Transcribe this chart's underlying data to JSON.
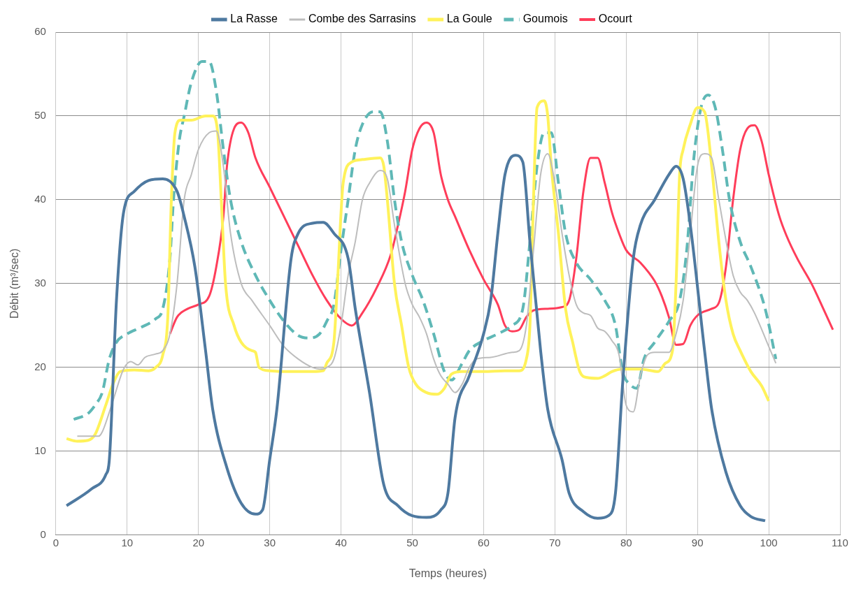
{
  "chart_data": {
    "type": "line",
    "xlabel": "Temps (heures)",
    "ylabel": "Débit (m³/sec)",
    "xlim": [
      0,
      110
    ],
    "xticks": [
      0,
      10,
      20,
      30,
      40,
      50,
      60,
      70,
      80,
      90,
      100,
      110
    ],
    "ylim": [
      0,
      60
    ],
    "yticks": [
      0,
      10,
      20,
      30,
      40,
      50,
      60
    ],
    "grid": true,
    "legend": "top",
    "marker": "none",
    "line_style": "solid",
    "series": [
      {
        "name": "La Rasse",
        "color": "#4e79a0",
        "x": [
          1.5,
          5,
          7,
          7.5,
          8.5,
          9.5,
          11,
          13,
          15,
          17,
          18,
          19.5,
          21,
          22,
          24,
          26,
          28,
          29,
          30,
          31,
          33,
          34,
          36,
          37.5,
          39,
          41,
          42,
          44,
          46,
          48,
          50,
          52,
          54,
          55,
          56,
          58,
          60,
          61,
          62,
          63,
          64.5,
          65.5,
          66.5,
          68,
          69,
          71,
          72,
          74,
          76,
          77.5,
          78.5,
          79.5,
          81,
          82,
          84,
          86,
          87,
          88,
          89,
          91,
          92,
          94,
          96,
          97.5,
          99.5
        ],
        "values": [
          3.5,
          5.5,
          7.2,
          9,
          28,
          38.5,
          41,
          42.3,
          42.5,
          41,
          38,
          32,
          22,
          15,
          8,
          3.8,
          2.5,
          3,
          9,
          15,
          33,
          36,
          37.2,
          37.3,
          36,
          33,
          27,
          17,
          6,
          3.5,
          2.3,
          2.1,
          3,
          5,
          14,
          19,
          24,
          28,
          36,
          43,
          45.3,
          44.5,
          35,
          22,
          15,
          9,
          5,
          2.8,
          2,
          2.3,
          5,
          18,
          33,
          37,
          40,
          43,
          44,
          42.5,
          37,
          22,
          15,
          7.5,
          3.5,
          2.2,
          1.7
        ]
      },
      {
        "name": "Combe des Sarrasins",
        "color": "#bdbdbd",
        "x": [
          3,
          6,
          6.5,
          8,
          9.5,
          10.5,
          11.5,
          12.5,
          14,
          15,
          16,
          17,
          18,
          19,
          20,
          21.5,
          22.5,
          23.5,
          24.5,
          26,
          27.5,
          30,
          32,
          34,
          36,
          37,
          38,
          39,
          40,
          41,
          42,
          43,
          44,
          45.5,
          46.5,
          47.5,
          49,
          50,
          51,
          52,
          53,
          54,
          55,
          56,
          57,
          58,
          59,
          61,
          64,
          65,
          66,
          67,
          68,
          69,
          70,
          71,
          72,
          73,
          74,
          75,
          76,
          77,
          78,
          79,
          80,
          81,
          82,
          83,
          84,
          86,
          87,
          88,
          89,
          90,
          91,
          92,
          93,
          95,
          96,
          97,
          98,
          100,
          101
        ],
        "values": [
          11.8,
          11.8,
          12.3,
          16,
          19.8,
          20.7,
          20.3,
          21.2,
          21.6,
          22,
          24,
          30,
          40,
          43,
          46,
          48,
          48.2,
          44,
          36,
          30,
          28,
          25,
          22.5,
          21,
          20,
          19.8,
          20,
          21,
          25,
          31,
          35,
          40,
          42,
          43.5,
          42.5,
          37,
          30,
          27.5,
          26,
          24,
          21,
          19,
          18,
          17,
          18,
          20,
          21,
          21.2,
          21.8,
          22,
          25,
          34,
          43,
          45.5,
          42,
          36,
          31,
          27.5,
          26.5,
          26.2,
          24.7,
          24.3,
          23.2,
          21.5,
          15.5,
          14.7,
          19,
          21.5,
          21.8,
          21.8,
          24,
          28,
          36,
          44,
          45.5,
          45,
          40,
          31,
          29,
          28,
          26.5,
          22.5,
          20.5
        ]
      },
      {
        "name": "La Goule",
        "color": "#fff25a",
        "x": [
          1.5,
          3,
          4.5,
          5.5,
          7,
          8,
          9,
          11,
          13,
          14,
          15,
          15.7,
          16.2,
          16.7,
          17.5,
          19,
          21,
          22,
          22.7,
          23.2,
          23.8,
          25,
          26,
          27.5,
          28,
          28.5,
          30,
          33,
          36,
          37.5,
          38,
          39,
          39.5,
          40.3,
          41.5,
          43,
          45.5,
          46,
          46.5,
          47.5,
          48.5,
          49.5,
          50.5,
          52,
          53.5,
          54.5,
          55.5,
          57,
          60,
          63,
          65,
          66,
          66.5,
          67,
          67.5,
          68.5,
          69,
          69.5,
          70.5,
          71.5,
          72.5,
          73.5,
          74.5,
          76,
          77,
          78,
          79.5,
          82,
          84.5,
          85.5,
          86.5,
          87,
          87.5,
          88,
          89,
          90,
          91,
          92,
          93,
          94,
          95,
          96,
          97.5,
          99,
          100
        ],
        "values": [
          11.5,
          11.2,
          11.3,
          12,
          15.5,
          18,
          19.5,
          19.7,
          19.6,
          20,
          21.5,
          26,
          40,
          48,
          49.5,
          49.5,
          50,
          50,
          48,
          40,
          30,
          25,
          23,
          22,
          21.8,
          20,
          19.6,
          19.5,
          19.5,
          19.6,
          20.5,
          23,
          30,
          42,
          44.5,
          44.8,
          45,
          44,
          40,
          30,
          25,
          20,
          18,
          17,
          16.8,
          17.5,
          19.2,
          19.5,
          19.5,
          19.6,
          19.6,
          21,
          25,
          40,
          51,
          51.8,
          50,
          44,
          36,
          27,
          23,
          19.5,
          18.8,
          18.7,
          19,
          19.5,
          19.8,
          19.8,
          19.5,
          20.5,
          22,
          30,
          43,
          46,
          49,
          51,
          50.5,
          44,
          35,
          28,
          24,
          22,
          19.5,
          17.8,
          16
        ]
      },
      {
        "name": "Goumois",
        "color": "#5fb8b6",
        "line_style": "dashed",
        "x": [
          2.5,
          4.5,
          5.5,
          6.5,
          7.5,
          8.5,
          10,
          12,
          14,
          15,
          16,
          16.5,
          17.3,
          18,
          19,
          20.5,
          21.5,
          22.5,
          23.5,
          24.5,
          26,
          28,
          30,
          32,
          34,
          35.5,
          37,
          38,
          39,
          40,
          41,
          42,
          43,
          44.5,
          45.5,
          46.5,
          47.5,
          48.5,
          50,
          51.5,
          53,
          54.5,
          55.5,
          57,
          58,
          60,
          62,
          64,
          65.5,
          66.5,
          67.5,
          68.5,
          69.5,
          70.5,
          71.5,
          73,
          75,
          77,
          78.5,
          79.5,
          80.5,
          81.5,
          82.5,
          84,
          86,
          87.5,
          88.5,
          89.5,
          90.5,
          91.5,
          92.5,
          93.5,
          94.5,
          96,
          97.5,
          99.5,
          101
        ],
        "values": [
          13.8,
          14.5,
          15.5,
          17,
          21,
          23,
          24,
          24.8,
          25.8,
          27,
          33,
          40,
          47,
          50,
          54,
          56.5,
          56.5,
          53,
          46,
          40,
          35,
          31,
          28,
          25.5,
          23.8,
          23.5,
          24,
          25.5,
          27.5,
          34,
          40,
          46,
          49,
          50.5,
          50.5,
          47,
          40,
          35,
          31,
          28,
          24,
          19.5,
          18.5,
          20.5,
          22,
          23.2,
          24,
          25,
          27,
          35,
          44,
          48,
          48,
          42,
          36,
          32.5,
          30.5,
          28,
          25,
          19.5,
          18,
          17.5,
          21,
          23,
          25.5,
          28,
          34,
          45,
          51,
          52.5,
          51,
          46,
          40,
          35,
          32,
          27,
          21
        ]
      },
      {
        "name": "Ocourt",
        "color": "#ff3d5a",
        "x": [
          16,
          17,
          18.5,
          20,
          21.5,
          22.5,
          23.5,
          24,
          25,
          26,
          27,
          28,
          30,
          32,
          34,
          36,
          38,
          40,
          41.5,
          43,
          45,
          47,
          48,
          49,
          50,
          51,
          52,
          53,
          54,
          55,
          56,
          58,
          60,
          62,
          63,
          64,
          65,
          66,
          67,
          69,
          71,
          72,
          73,
          74,
          75,
          76,
          77,
          78,
          79,
          80,
          82,
          84,
          85,
          86,
          87,
          88,
          89,
          90,
          92,
          93,
          94,
          95,
          96,
          97,
          98,
          99,
          100,
          101.5,
          102.5,
          104,
          106,
          107.5,
          109
        ],
        "values": [
          24,
          26,
          27,
          27.5,
          28.5,
          32,
          38,
          44,
          48.5,
          49.2,
          48,
          45,
          41.5,
          38,
          34.5,
          31,
          28,
          25.8,
          25,
          26.5,
          29.5,
          33.5,
          37,
          41,
          46,
          48.5,
          49.2,
          48,
          43,
          40,
          38,
          34,
          30.5,
          27.5,
          25,
          24.3,
          24.5,
          26,
          26.8,
          27,
          27.2,
          28,
          33,
          41,
          45,
          45,
          42,
          38.5,
          36,
          34,
          32.5,
          30.3,
          28.5,
          26,
          22.7,
          22.8,
          25,
          26.2,
          27,
          27.7,
          32,
          40,
          46,
          48.5,
          48.9,
          47,
          43,
          38,
          35.7,
          33,
          30,
          27.3,
          24.5
        ]
      }
    ]
  }
}
